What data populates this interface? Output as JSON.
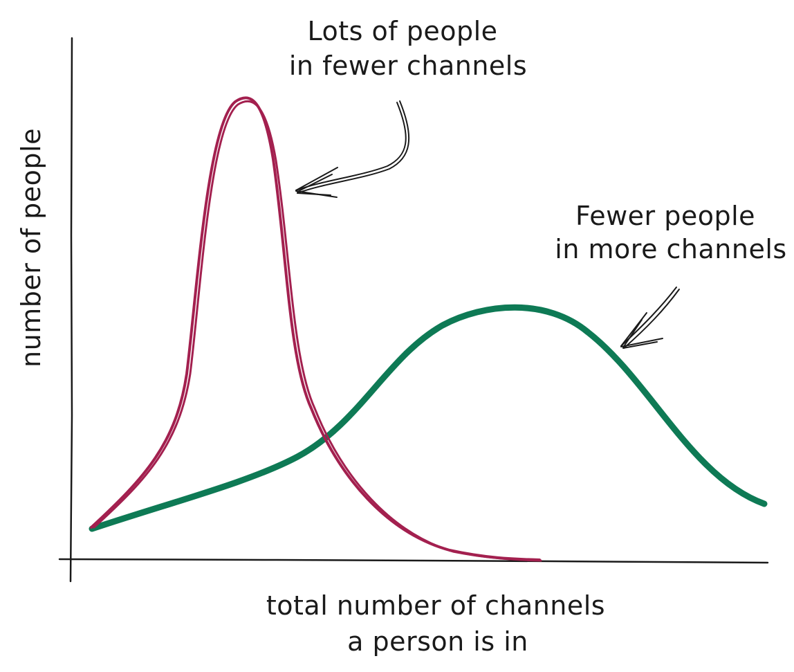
{
  "axes": {
    "x_label_line1": "total number of channels",
    "x_label_line2": "a person is in",
    "y_label": "number of people"
  },
  "annotations": {
    "peak_line1": "Lots of people",
    "peak_line2": "in fewer channels",
    "wide_line1": "Fewer people",
    "wide_line2": "in more channels"
  },
  "colors": {
    "narrow_curve": "#a3204f",
    "wide_curve": "#0e7a55",
    "ink": "#1a1a1a"
  }
}
